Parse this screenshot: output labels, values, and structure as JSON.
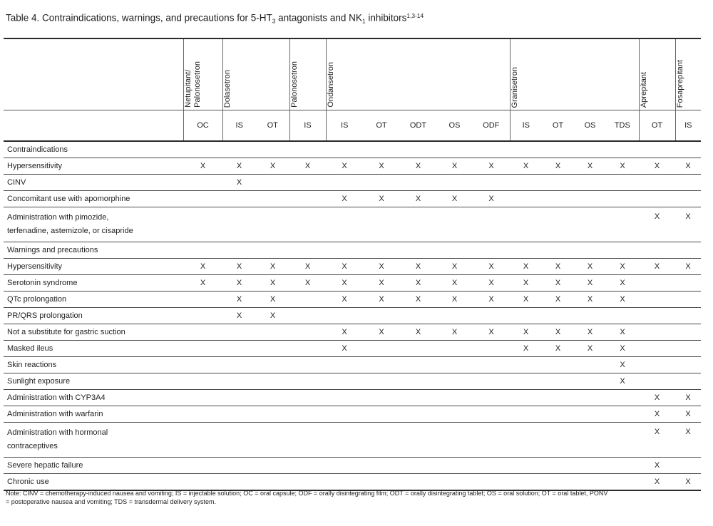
{
  "title": {
    "part1": "Table 4. Contraindications, warnings, and precautions for 5-HT",
    "sub1": "3",
    "part2": " antagonists and NK",
    "sub2": "1",
    "part3": " inhibitors",
    "sup": "1,3-14"
  },
  "table": {
    "mark_symbol": "X",
    "groups": [
      {
        "name": "Netupitant/\nPalonosetron",
        "formulations": [
          "OC"
        ]
      },
      {
        "name": "Dolasetron",
        "formulations": [
          "IS",
          "OT"
        ]
      },
      {
        "name": "Palonosetron",
        "formulations": [
          "IS"
        ]
      },
      {
        "name": "Ondansetron",
        "formulations": [
          "IS",
          "OT",
          "ODT",
          "OS",
          "ODF"
        ]
      },
      {
        "name": "Granisetron",
        "formulations": [
          "IS",
          "OT",
          "OS",
          "TDS"
        ]
      },
      {
        "name": "Aprepitant",
        "formulations": [
          "OT"
        ]
      },
      {
        "name": "Fosaprepitant",
        "formulations": [
          "IS"
        ]
      }
    ],
    "rows": [
      {
        "label": "Contraindications",
        "type": "section",
        "marks": []
      },
      {
        "label": "Hypersensitivity",
        "type": "item",
        "marks": [
          0,
          1,
          2,
          3,
          4,
          5,
          6,
          7,
          8,
          9,
          10,
          11,
          12,
          13,
          14
        ]
      },
      {
        "label": "CINV",
        "type": "item",
        "marks": [
          1
        ]
      },
      {
        "label": "Concomitant use with apomorphine",
        "type": "item",
        "marks": [
          4,
          5,
          6,
          7,
          8
        ]
      },
      {
        "label": "Administration with pimozide,\nterfenadine, astemizole, or cisapride",
        "type": "item",
        "tall": true,
        "marks": [
          13,
          14
        ]
      },
      {
        "label": "Warnings and precautions",
        "type": "section",
        "marks": []
      },
      {
        "label": "Hypersensitivity",
        "type": "item",
        "marks": [
          0,
          1,
          2,
          3,
          4,
          5,
          6,
          7,
          8,
          9,
          10,
          11,
          12,
          13,
          14
        ]
      },
      {
        "label": "Serotonin syndrome",
        "type": "item",
        "marks": [
          0,
          1,
          2,
          3,
          4,
          5,
          6,
          7,
          8,
          9,
          10,
          11,
          12
        ]
      },
      {
        "label": "QTc prolongation",
        "type": "item",
        "marks": [
          1,
          2,
          4,
          5,
          6,
          7,
          8,
          9,
          10,
          11,
          12
        ]
      },
      {
        "label": "PR/QRS prolongation",
        "type": "item",
        "marks": [
          1,
          2
        ]
      },
      {
        "label": "Not a substitute for gastric suction",
        "type": "item",
        "marks": [
          4,
          5,
          6,
          7,
          8,
          9,
          10,
          11,
          12
        ]
      },
      {
        "label": "Masked ileus",
        "type": "item",
        "marks": [
          4,
          9,
          10,
          11,
          12
        ]
      },
      {
        "label": "Skin reactions",
        "type": "item",
        "marks": [
          12
        ]
      },
      {
        "label": "Sunlight exposure",
        "type": "item",
        "marks": [
          12
        ]
      },
      {
        "label": "Administration with CYP3A4",
        "type": "item",
        "marks": [
          13,
          14
        ]
      },
      {
        "label": "Administration with warfarin",
        "type": "item",
        "marks": [
          13,
          14
        ]
      },
      {
        "label": "Administration with hormonal\ncontraceptives",
        "type": "item",
        "tall": true,
        "marks": [
          13,
          14
        ]
      },
      {
        "label": "Severe hepatic failure",
        "type": "item",
        "marks": [
          13
        ]
      },
      {
        "label": "Chronic use",
        "type": "item",
        "marks": [
          13,
          14
        ]
      }
    ]
  },
  "note": "Note: CINV = chemotherapy-induced nausea and vomiting; IS = injectable solution; OC = oral capsule; ODF = orally disintegrating film; ODT = orally disintegrating tablet; OS = oral solution; OT = oral tablet, PONV\n= postoperative nausea and vomiting; TDS = transdermal delivery system.",
  "colors": {
    "text": "#1f1f1f",
    "rule_heavy": "#2a2a2a",
    "rule_light": "#555555"
  }
}
